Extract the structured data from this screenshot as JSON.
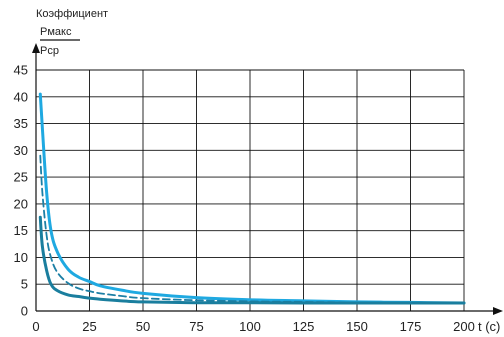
{
  "chart_data": {
    "type": "line",
    "ylabel_line1": "Коэффициент",
    "ylabel_numerator": "Pмакс",
    "ylabel_denominator": "Pср",
    "xlabel": "t (c)",
    "xlim": [
      0,
      210
    ],
    "ylim": [
      0,
      45
    ],
    "xticks": [
      0,
      25,
      50,
      75,
      100,
      125,
      150,
      175,
      200
    ],
    "yticks": [
      0,
      5,
      10,
      15,
      20,
      25,
      30,
      35,
      40,
      45
    ],
    "grid": true,
    "colors": {
      "light": "#1fa9e1",
      "dashed": "#1c7fa5",
      "dark": "#1a7e9e",
      "grid": "#111111",
      "axis": "#111111"
    },
    "series": [
      {
        "style": "solid-light",
        "x": [
          2,
          3,
          5,
          7,
          10,
          15,
          20,
          25,
          30,
          40,
          50,
          75,
          100,
          125,
          150,
          175,
          200
        ],
        "values": [
          40.5,
          34,
          22,
          15,
          11,
          7.8,
          6.3,
          5.5,
          4.7,
          3.9,
          3.3,
          2.5,
          2.1,
          1.9,
          1.7,
          1.6,
          1.5
        ]
      },
      {
        "style": "dashed",
        "x": [
          2,
          3,
          5,
          7,
          10,
          15,
          20,
          25,
          30,
          40,
          50,
          75,
          100,
          125,
          150,
          175,
          200
        ],
        "values": [
          29,
          22,
          14,
          10,
          7.2,
          5.2,
          4.2,
          3.7,
          3.3,
          2.8,
          2.4,
          2.0,
          1.8,
          1.7,
          1.6,
          1.55,
          1.5
        ]
      },
      {
        "style": "solid-dark",
        "x": [
          2,
          3,
          5,
          7,
          10,
          15,
          20,
          25,
          30,
          40,
          50,
          75,
          100,
          125,
          150,
          175,
          200
        ],
        "values": [
          17.5,
          12,
          7.5,
          5,
          3.8,
          3.0,
          2.7,
          2.4,
          2.2,
          1.9,
          1.7,
          1.55,
          1.55,
          1.5,
          1.5,
          1.5,
          1.5
        ]
      }
    ]
  }
}
